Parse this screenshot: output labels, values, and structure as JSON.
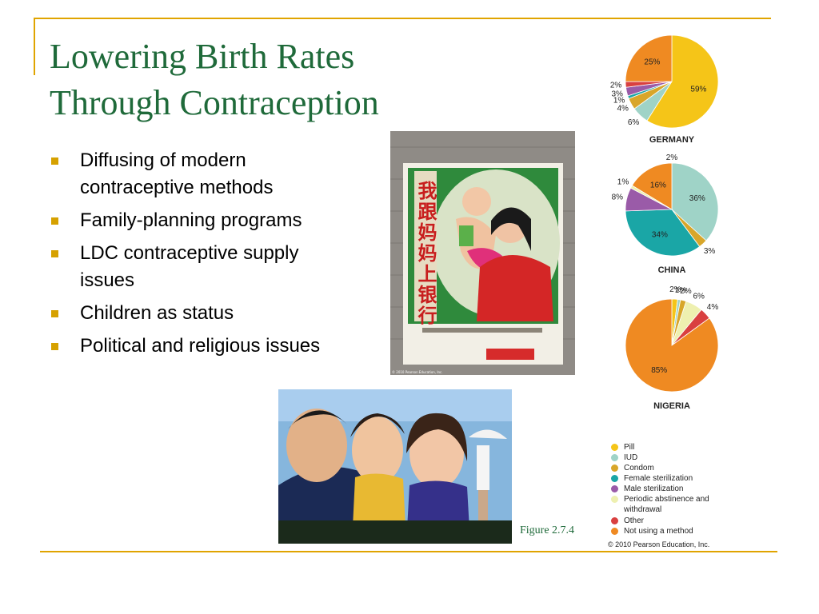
{
  "slide": {
    "title_line1": "Lowering Birth Rates",
    "title_line2": "Through Contraception",
    "bullets": [
      "Diffusing of modern contraceptive methods",
      "Family-planning programs",
      "LDC contraceptive supply issues",
      "Children as status",
      "Political and religious issues"
    ],
    "figure_caption": "Figure 2.7.4",
    "copyright": "© 2010 Pearson Education, Inc.",
    "photo_copyright": "© 2010 Pearson Education, Inc.",
    "poster_text": "我跟妈妈上银行"
  },
  "chart_data": {
    "type": "pie",
    "methods": [
      "Pill",
      "IUD",
      "Condom",
      "Female sterilization",
      "Male sterilization",
      "Periodic abstinence and withdrawal",
      "Other",
      "Not using a method"
    ],
    "colors": [
      "#f5c518",
      "#9fd3c7",
      "#d8a62a",
      "#1aa6a6",
      "#9a5ba8",
      "#eef0b0",
      "#d94040",
      "#ef8a22"
    ],
    "pies": [
      {
        "name": "GERMANY",
        "values": [
          59,
          6,
          4,
          1,
          3,
          null,
          2,
          25
        ],
        "labels": [
          "59%",
          "6%",
          "4%",
          "1%",
          "3%",
          "",
          "2%",
          "25%"
        ]
      },
      {
        "name": "CHINA",
        "values": [
          null,
          36,
          3,
          34,
          8,
          1,
          null,
          16
        ],
        "labels": [
          "",
          "36%",
          "3%",
          "34%",
          "8%",
          "1%",
          "",
          "16%"
        ],
        "extra_label": "2%"
      },
      {
        "name": "NIGERIA",
        "values": [
          2,
          1,
          2,
          null,
          null,
          6,
          4,
          85
        ],
        "labels": [
          "2%",
          "1%",
          "2%",
          "",
          "",
          "6%",
          "4%",
          "85%"
        ]
      }
    ]
  }
}
